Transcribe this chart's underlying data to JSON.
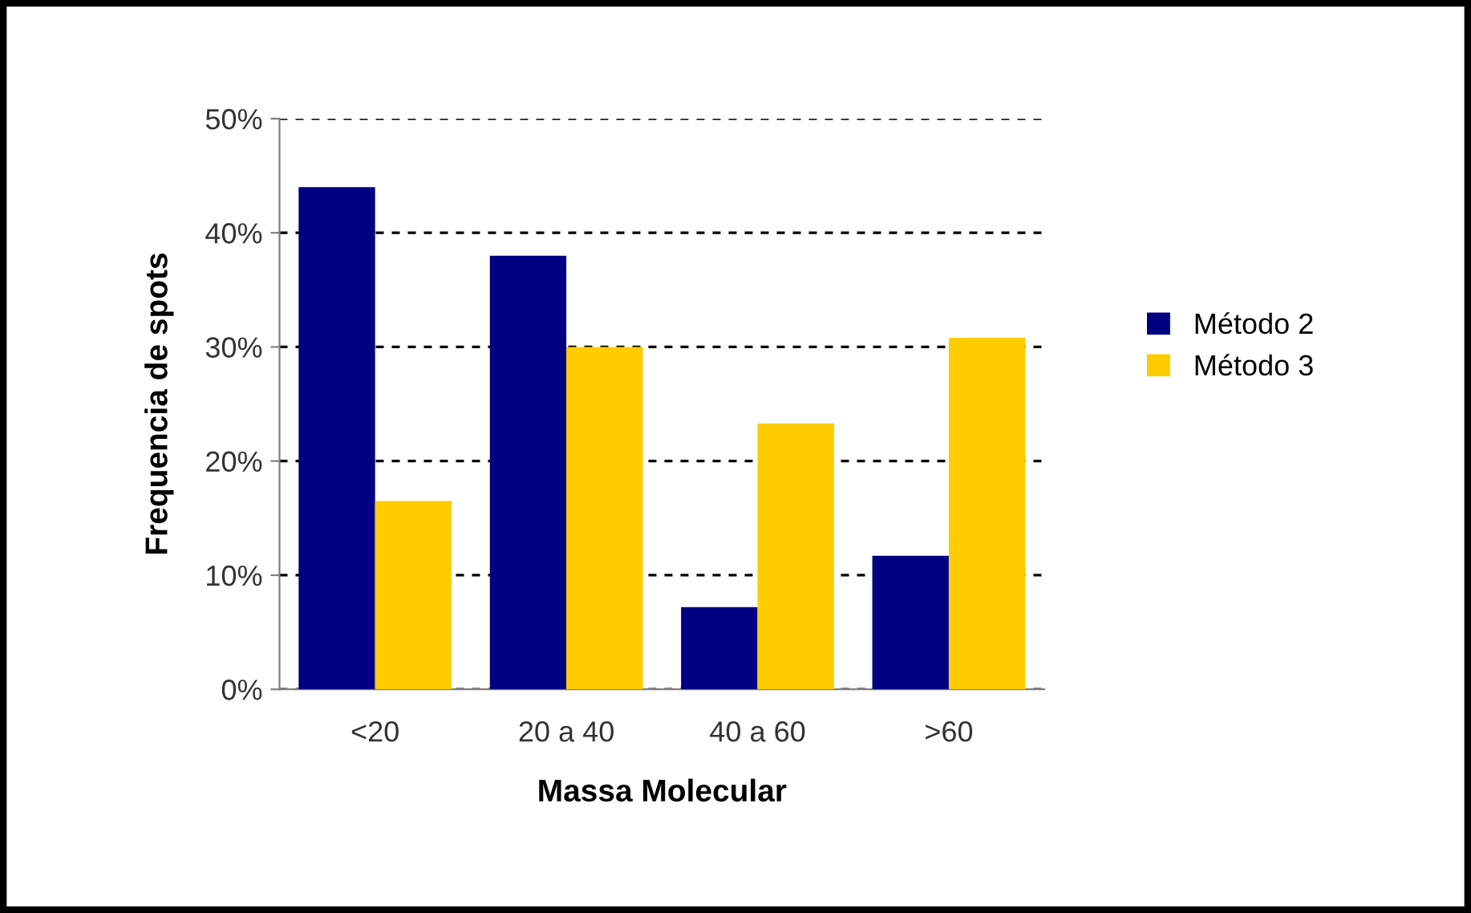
{
  "chart_data": {
    "type": "bar",
    "xlabel": "Massa Molecular",
    "ylabel": "Frequencia de spots",
    "categories": [
      "<20",
      "20 a 40",
      "40 a 60",
      ">60"
    ],
    "series": [
      {
        "name": "Método 2",
        "color": "#000080",
        "values": [
          44,
          38,
          7.2,
          11.7
        ]
      },
      {
        "name": "Método 3",
        "color": "#ffcc00",
        "values": [
          16.5,
          30,
          23.3,
          30.8
        ]
      }
    ],
    "ylim": [
      0,
      50
    ],
    "yticks": [
      {
        "value": 0,
        "label": "0%"
      },
      {
        "value": 10,
        "label": "10%"
      },
      {
        "value": 20,
        "label": "20%"
      },
      {
        "value": 30,
        "label": "30%"
      },
      {
        "value": 40,
        "label": "40%"
      },
      {
        "value": 50,
        "label": "50%"
      }
    ],
    "grid": "y",
    "legend": "right"
  }
}
